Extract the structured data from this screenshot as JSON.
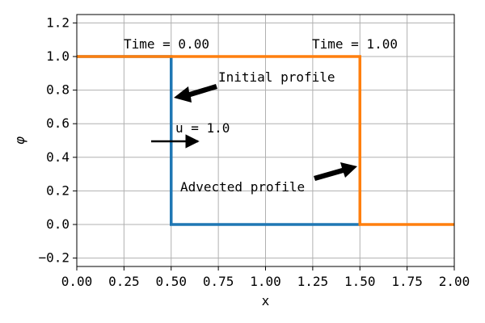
{
  "chart_data": {
    "type": "line",
    "xlabel": "x",
    "ylabel": "φ",
    "xlim": [
      0.0,
      2.0
    ],
    "ylim": [
      -0.25,
      1.25
    ],
    "grid": true,
    "x_ticks": [
      "0.00",
      "0.25",
      "0.50",
      "0.75",
      "1.00",
      "1.25",
      "1.50",
      "1.75",
      "2.00"
    ],
    "y_ticks": [
      "−0.2",
      "0.0",
      "0.2",
      "0.4",
      "0.6",
      "0.8",
      "1.0",
      "1.2"
    ],
    "series": [
      {
        "color": "#1f77b4",
        "x": [
          0.0,
          0.5,
          0.5,
          1.5
        ],
        "y": [
          1.0,
          1.0,
          0.0,
          0.0
        ]
      },
      {
        "color": "#ff7f0e",
        "x": [
          0.0,
          1.5,
          1.5,
          2.0
        ],
        "y": [
          1.0,
          1.0,
          0.0,
          0.0
        ]
      }
    ],
    "annotations": {
      "time_initial": "Time = 0.00",
      "time_final": "Time = 1.00",
      "initial_profile": "Initial profile",
      "advected_profile": "Advected profile",
      "velocity": "u = 1.0"
    }
  }
}
